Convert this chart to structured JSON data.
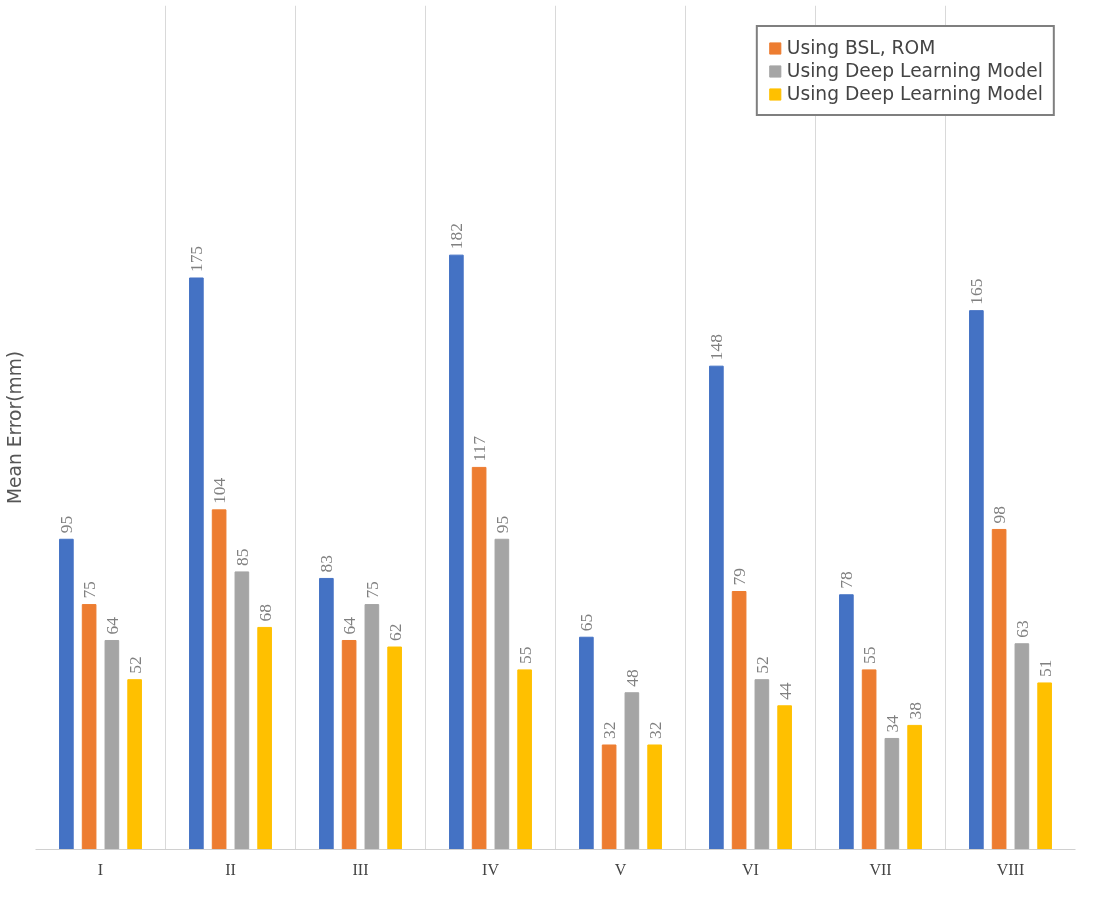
{
  "chart_data": {
    "type": "bar",
    "ylabel": "Mean Error(mm)",
    "categories": [
      "I",
      "II",
      "III",
      "IV",
      "V",
      "VI",
      "VII",
      "VIII"
    ],
    "series": [
      {
        "color": "#4472c4",
        "values": [
          95,
          175,
          83,
          182,
          65,
          148,
          78,
          165
        ]
      },
      {
        "name": "Using BSL, ROM",
        "color": "#ed7d31",
        "values": [
          75,
          104,
          64,
          117,
          32,
          79,
          55,
          98
        ]
      },
      {
        "name": "Using Deep Learning Model",
        "color": "#a5a5a5",
        "values": [
          64,
          85,
          75,
          95,
          48,
          52,
          34,
          63
        ]
      },
      {
        "name": "Using Deep Learning Model",
        "color": "#ffc000",
        "values": [
          52,
          68,
          62,
          55,
          32,
          44,
          38,
          51
        ]
      }
    ],
    "data_labels": true,
    "grid": "x",
    "legend": "top right"
  }
}
